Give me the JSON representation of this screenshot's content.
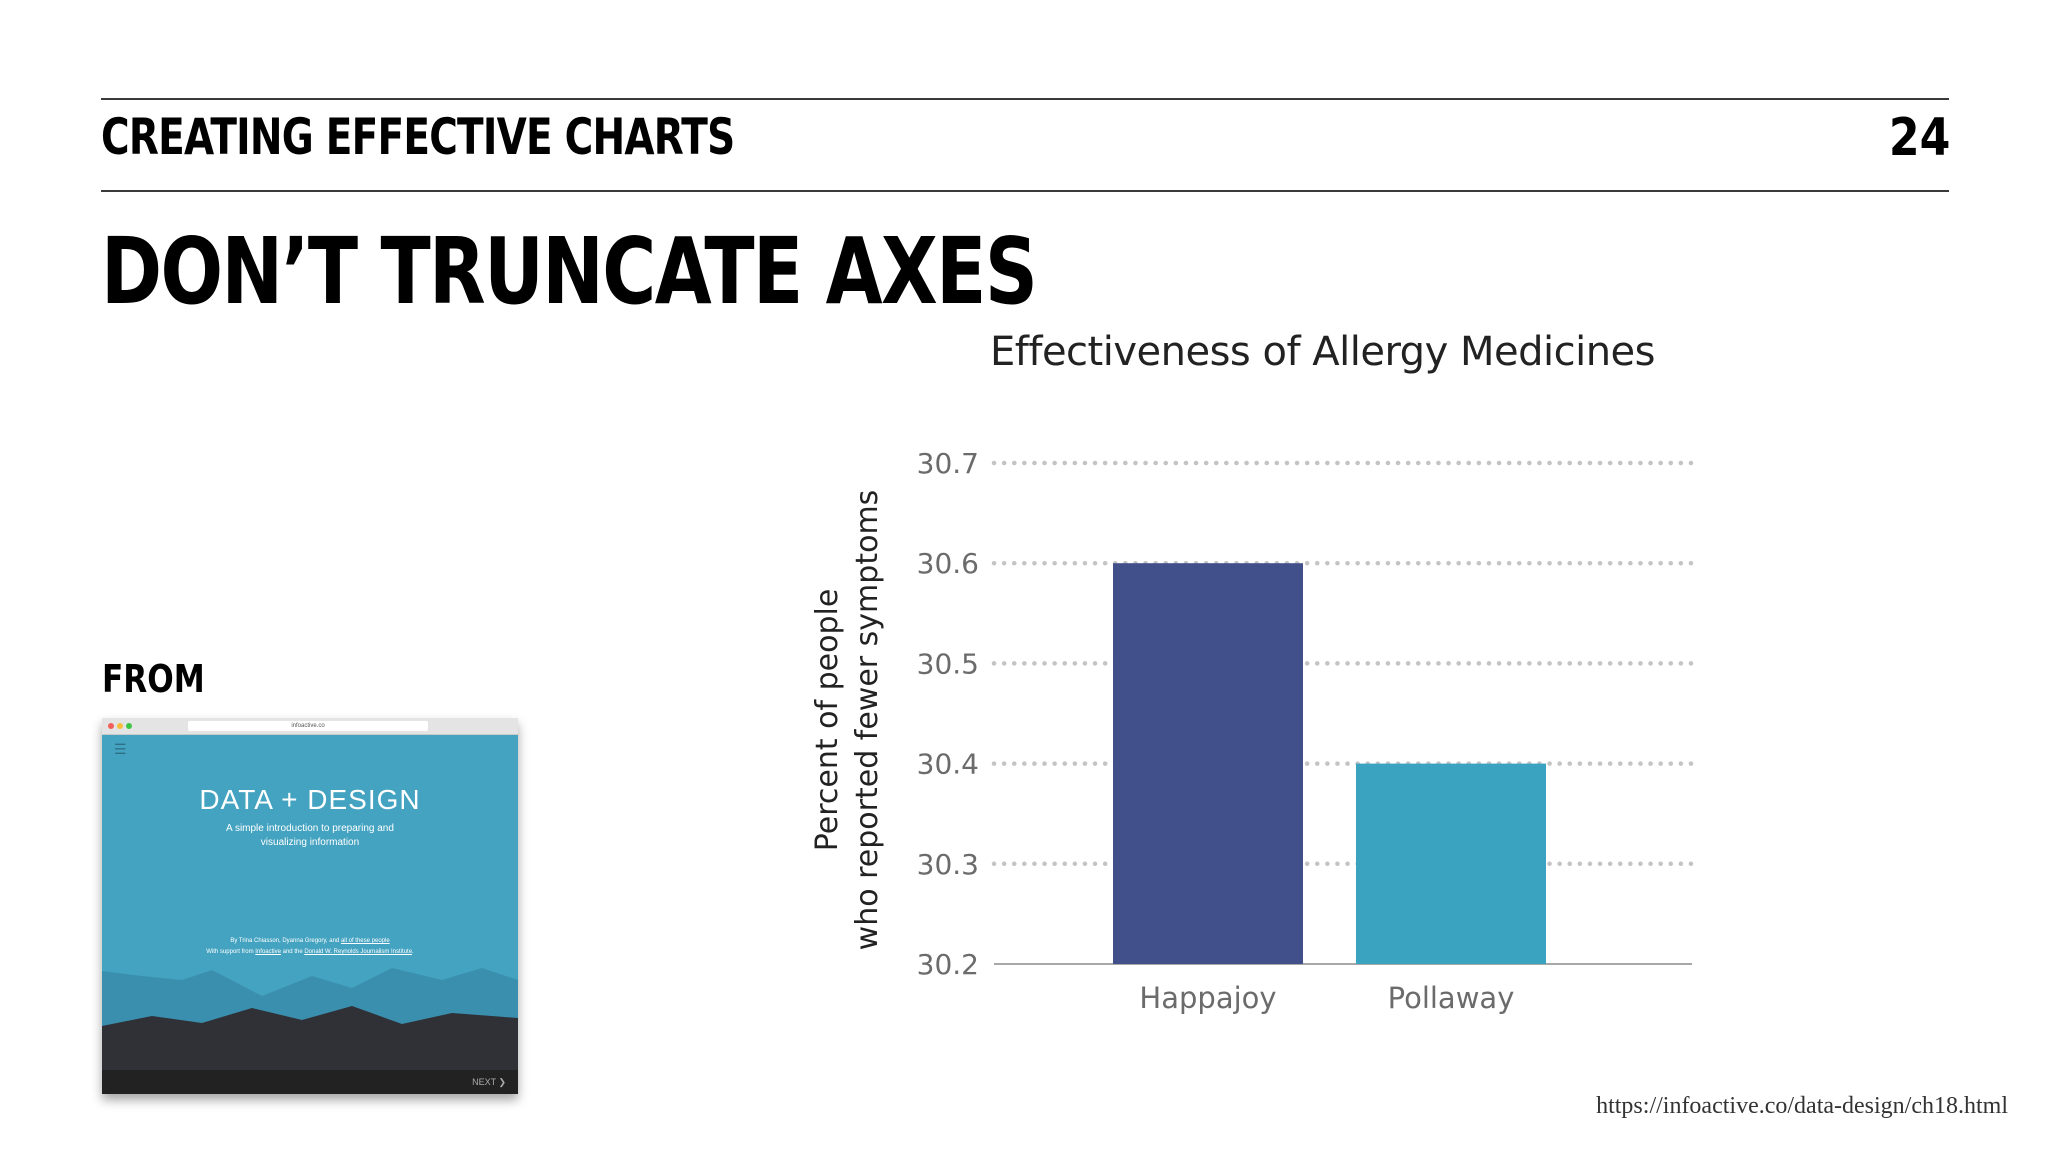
{
  "header": {
    "section_title": "CREATING EFFECTIVE CHARTS",
    "page_number": "24"
  },
  "slide": {
    "title": "DON’T TRUNCATE AXES",
    "from_label": "FROM"
  },
  "thumbnail": {
    "url": "infoactive.co",
    "title": "DATA + DESIGN",
    "subtitle_line1": "A simple introduction to preparing and",
    "subtitle_line2": "visualizing information",
    "credit_line1_a": "By Trina Chiasson, Dyanna Gregory, and ",
    "credit_line1_b": "all of these people",
    "credit_line2_a": "With support from ",
    "credit_line2_b": "Infoactive",
    "credit_line2_c": " and the ",
    "credit_line2_d": "Donald W. Reynolds Journalism Institute",
    "next_label": "NEXT",
    "colors": {
      "sky": "#44a3c0",
      "mid_ridge": "#3a8fae",
      "near_ridge": "#2f3136",
      "footer": "#222222"
    }
  },
  "chart_data": {
    "type": "bar",
    "title": "Effectiveness of Allergy Medicines",
    "ylabel_line1": "Percent of people",
    "ylabel_line2": "who reported fewer symptoms",
    "xlabel": "",
    "categories": [
      "Happajoy",
      "Pollaway"
    ],
    "values": [
      30.6,
      30.4
    ],
    "ylim": [
      30.2,
      30.7
    ],
    "yticks": [
      "30.2",
      "30.3",
      "30.4",
      "30.5",
      "30.6",
      "30.7"
    ],
    "grid": "dotted horizontal",
    "colors": [
      "#41508a",
      "#3aa3c0"
    ]
  },
  "source": {
    "url": "https://infoactive.co/data-design/ch18.html"
  }
}
